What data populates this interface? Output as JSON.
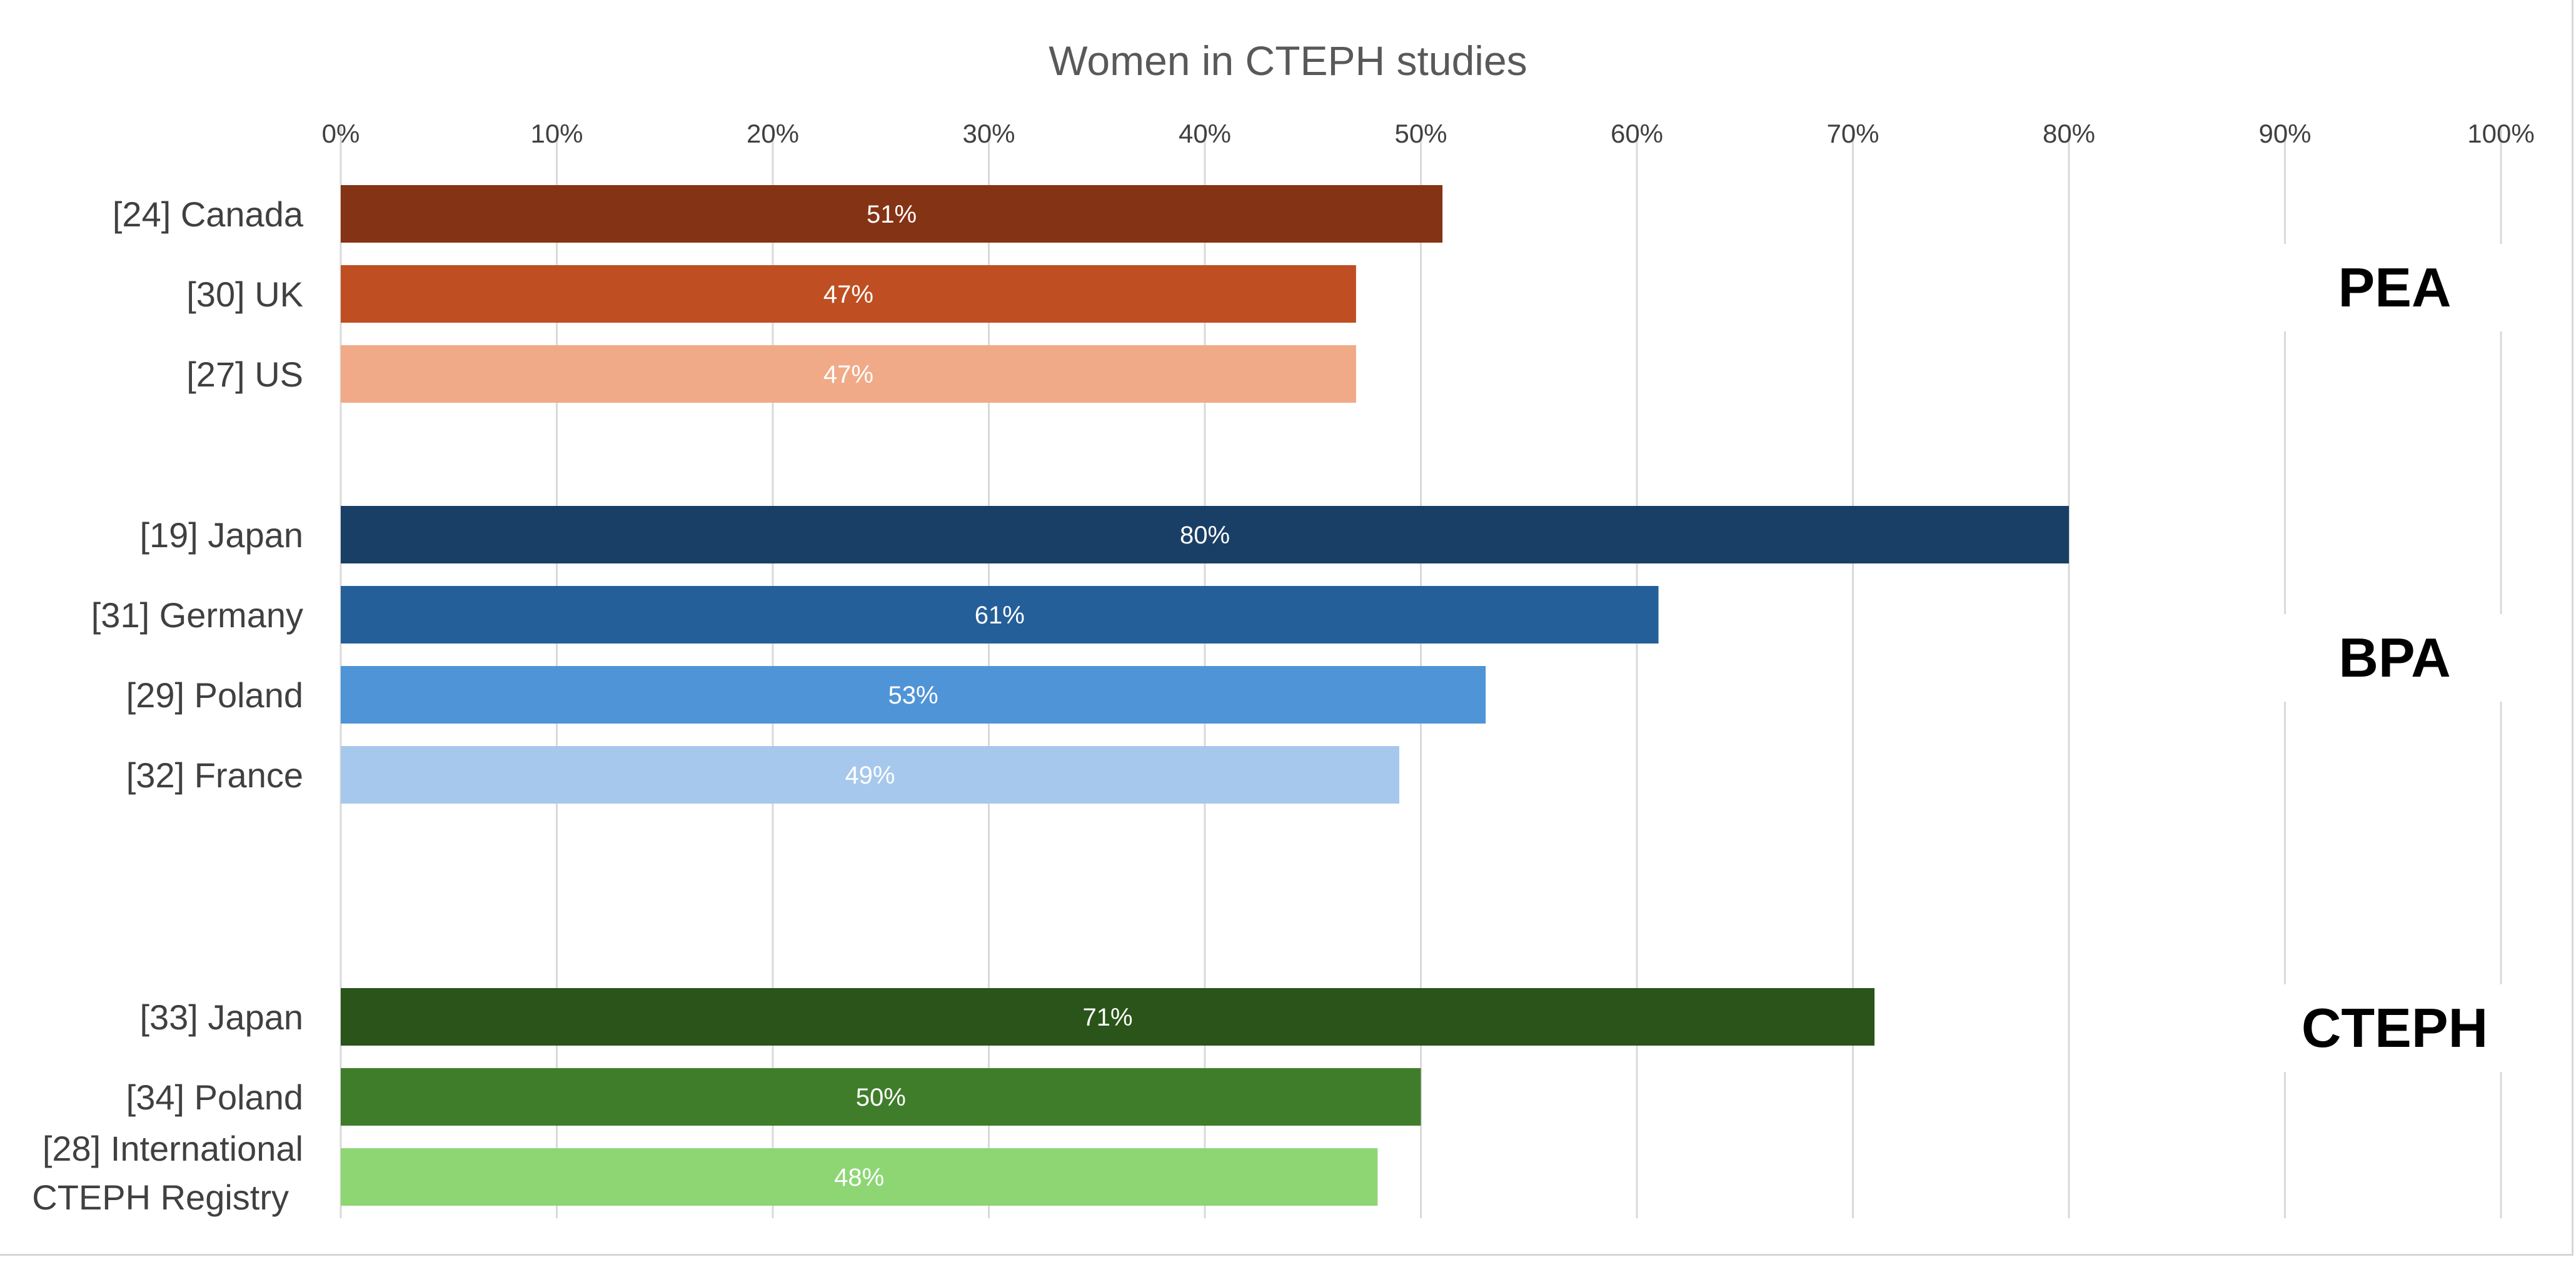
{
  "chart_data": {
    "type": "bar",
    "orientation": "horizontal",
    "title": "Women in CTEPH studies",
    "xlabel": "",
    "ylabel": "",
    "xlim": [
      0,
      100
    ],
    "x_ticks": [
      "0%",
      "10%",
      "20%",
      "30%",
      "40%",
      "50%",
      "60%",
      "70%",
      "80%",
      "90%",
      "100%"
    ],
    "grid": true,
    "legend": "none",
    "groups": [
      {
        "name": "PEA",
        "bars": [
          {
            "label": "[24] Canada",
            "value": 51,
            "value_label": "51%",
            "color": "#843314"
          },
          {
            "label": "[30] UK",
            "value": 47,
            "value_label": "47%",
            "color": "#bf4f22"
          },
          {
            "label": "[27] US",
            "value": 47,
            "value_label": "47%",
            "color": "#f0aa88"
          }
        ]
      },
      {
        "name": "BPA",
        "bars": [
          {
            "label": "[19] Japan",
            "value": 80,
            "value_label": "80%",
            "color": "#1a3f66"
          },
          {
            "label": "[31] Germany",
            "value": 61,
            "value_label": "61%",
            "color": "#245f99"
          },
          {
            "label": "[29] Poland",
            "value": 53,
            "value_label": "53%",
            "color": "#4f94d6"
          },
          {
            "label": "[32] France",
            "value": 49,
            "value_label": "49%",
            "color": "#a6c8ec"
          }
        ]
      },
      {
        "name": "CTEPH",
        "bars": [
          {
            "label": "[33] Japan",
            "value": 71,
            "value_label": "71%",
            "color": "#2a5419"
          },
          {
            "label": "[34] Poland",
            "value": 50,
            "value_label": "50%",
            "color": "#3f7d2b"
          },
          {
            "label": "[28] International CTEPH Registry",
            "label_lines": [
              "[28] International",
              "CTEPH Registry"
            ],
            "value": 48,
            "value_label": "48%",
            "color": "#8ed674"
          }
        ]
      }
    ]
  }
}
